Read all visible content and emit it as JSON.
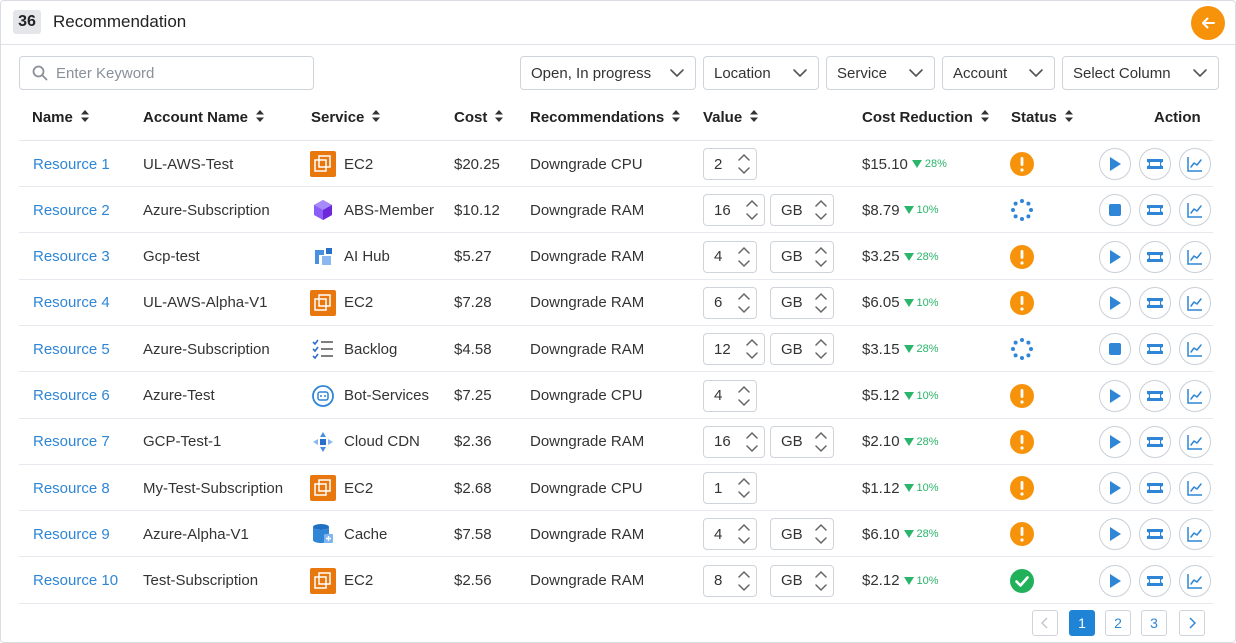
{
  "header": {
    "count": "36",
    "title": "Recommendation"
  },
  "search": {
    "placeholder": "Enter Keyword",
    "value": ""
  },
  "filters": [
    {
      "label": "Open, In progress"
    },
    {
      "label": "Location"
    },
    {
      "label": "Service"
    },
    {
      "label": "Account"
    },
    {
      "label": "Select Column"
    }
  ],
  "columns": {
    "name": "Name",
    "account": "Account Name",
    "service": "Service",
    "cost": "Cost",
    "recommendations": "Recommendations",
    "value": "Value",
    "cost_reduction": "Cost Reduction",
    "status": "Status",
    "action": "Action"
  },
  "rows": [
    {
      "name": "Resource 1",
      "account": "UL-AWS-Test",
      "service": "EC2",
      "service_icon": "ec2-icon",
      "cost": "$20.25",
      "recommendation": "Downgrade CPU",
      "value": "2",
      "unit": "",
      "reduction": "$15.10",
      "pct": "28%",
      "status": "warning",
      "primary_action": "play"
    },
    {
      "name": "Resource 2",
      "account": "Azure-Subscription",
      "service": "ABS-Member",
      "service_icon": "abs-member-icon",
      "cost": "$10.12",
      "recommendation": "Downgrade RAM",
      "value": "16",
      "unit": "GB",
      "reduction": "$8.79",
      "pct": "10%",
      "status": "in-progress",
      "primary_action": "stop"
    },
    {
      "name": "Resource 3",
      "account": "Gcp-test",
      "service": "AI Hub",
      "service_icon": "ai-hub-icon",
      "cost": "$5.27",
      "recommendation": "Downgrade RAM",
      "value": "4",
      "unit": "GB",
      "reduction": "$3.25",
      "pct": "28%",
      "status": "warning",
      "primary_action": "play"
    },
    {
      "name": "Resource 4",
      "account": "UL-AWS-Alpha-V1",
      "service": "EC2",
      "service_icon": "ec2-icon",
      "cost": "$7.28",
      "recommendation": "Downgrade RAM",
      "value": "6",
      "unit": "GB",
      "reduction": "$6.05",
      "pct": "10%",
      "status": "warning",
      "primary_action": "play"
    },
    {
      "name": "Resource 5",
      "account": "Azure-Subscription",
      "service": "Backlog",
      "service_icon": "backlog-icon",
      "cost": "$4.58",
      "recommendation": "Downgrade RAM",
      "value": "12",
      "unit": "GB",
      "reduction": "$3.15",
      "pct": "28%",
      "status": "in-progress",
      "primary_action": "stop"
    },
    {
      "name": "Resource 6",
      "account": "Azure-Test",
      "service": "Bot-Services",
      "service_icon": "bot-services-icon",
      "cost": "$7.25",
      "recommendation": "Downgrade CPU",
      "value": "4",
      "unit": "",
      "reduction": "$5.12",
      "pct": "10%",
      "status": "warning",
      "primary_action": "play"
    },
    {
      "name": "Resource 7",
      "account": "GCP-Test-1",
      "service": "Cloud CDN",
      "service_icon": "cloud-cdn-icon",
      "cost": "$2.36",
      "recommendation": "Downgrade RAM",
      "value": "16",
      "unit": "GB",
      "reduction": "$2.10",
      "pct": "28%",
      "status": "warning",
      "primary_action": "play"
    },
    {
      "name": "Resource 8",
      "account": "My-Test-Subscription",
      "service": "EC2",
      "service_icon": "ec2-icon",
      "cost": "$2.68",
      "recommendation": "Downgrade CPU",
      "value": "1",
      "unit": "",
      "reduction": "$1.12",
      "pct": "10%",
      "status": "warning",
      "primary_action": "play"
    },
    {
      "name": "Resource 9",
      "account": "Azure-Alpha-V1",
      "service": "Cache",
      "service_icon": "cache-icon",
      "cost": "$7.58",
      "recommendation": "Downgrade RAM",
      "value": "4",
      "unit": "GB",
      "reduction": "$6.10",
      "pct": "28%",
      "status": "warning",
      "primary_action": "play"
    },
    {
      "name": "Resource 10",
      "account": "Test-Subscription",
      "service": "EC2",
      "service_icon": "ec2-icon",
      "cost": "$2.56",
      "recommendation": "Downgrade RAM",
      "value": "8",
      "unit": "GB",
      "reduction": "$2.12",
      "pct": "10%",
      "status": "done",
      "primary_action": "play"
    }
  ],
  "pagination": {
    "pages": [
      "1",
      "2",
      "3"
    ],
    "current": "1"
  },
  "colors": {
    "accent": "#f7930a",
    "link": "#2f86d6",
    "success": "#2bb56b",
    "warning": "#f7930a",
    "progress": "#2f86d6"
  }
}
